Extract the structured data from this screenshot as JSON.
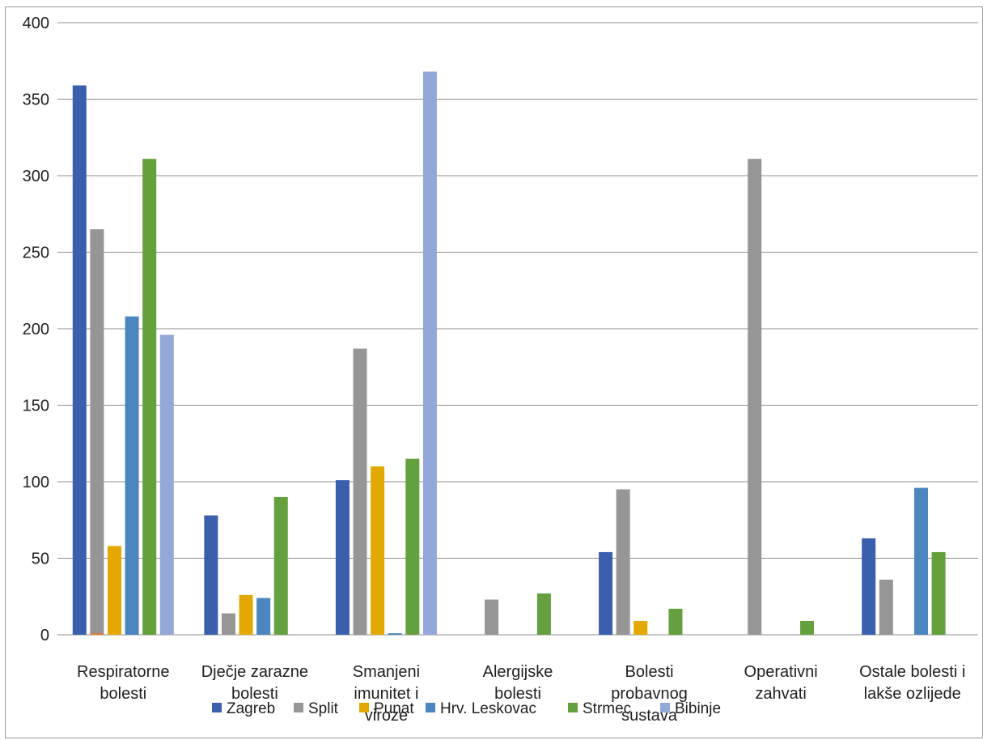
{
  "chart_data": {
    "type": "bar",
    "title": "",
    "xlabel": "",
    "ylabel": "",
    "ylim": [
      0,
      400
    ],
    "yticks": [
      0,
      50,
      100,
      150,
      200,
      250,
      300,
      350,
      400
    ],
    "grid": true,
    "legend_position": "bottom",
    "categories": [
      [
        "Respiratorne",
        "bolesti"
      ],
      [
        "Dječje zarazne",
        "bolesti"
      ],
      [
        "Smanjeni",
        "imunitet i",
        "viroze"
      ],
      [
        "Alergijske",
        "bolesti"
      ],
      [
        "Bolesti",
        "probavnog",
        "sustava"
      ],
      [
        "Operativni",
        "zahvati"
      ],
      [
        "Ostale bolesti i",
        "lakše ozlijede"
      ]
    ],
    "series": [
      {
        "name": "Zagreb",
        "color": "#3a5fad",
        "values": [
          359,
          78,
          101,
          0,
          54,
          0,
          63
        ]
      },
      {
        "name": "Split",
        "color": "#969696",
        "values": [
          265,
          14,
          187,
          23,
          95,
          311,
          36
        ]
      },
      {
        "name": "Punat",
        "color": "#e3a902",
        "values": [
          58,
          26,
          110,
          0,
          9,
          0,
          0
        ]
      },
      {
        "name": "Hrv. Leskovac",
        "color": "#4b86bf",
        "values": [
          208,
          24,
          1,
          0,
          0,
          0,
          96
        ]
      },
      {
        "name": "Strmec",
        "color": "#64a03e",
        "values": [
          311,
          90,
          115,
          27,
          17,
          9,
          54
        ]
      },
      {
        "name": "Bibinje",
        "color": "#92a8d8",
        "values": [
          196,
          0,
          368,
          0,
          0,
          0,
          0
        ]
      }
    ],
    "extra_marks": [
      {
        "series_index": 1,
        "category_index": 0,
        "value": 1,
        "color": "#d87a39"
      }
    ]
  }
}
